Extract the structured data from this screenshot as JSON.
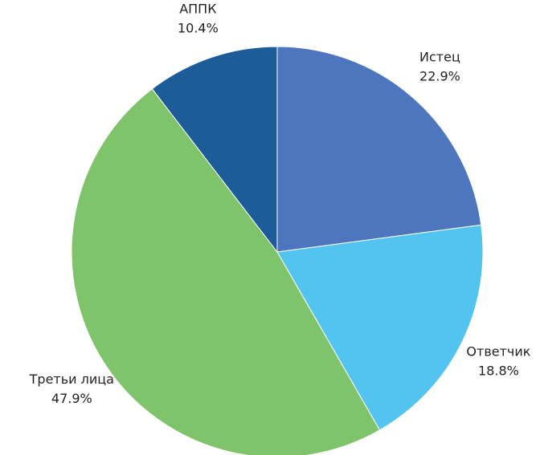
{
  "chart_data": {
    "type": "pie",
    "categories": [
      "Истец",
      "Ответчик",
      "Третьи лица",
      "АППК"
    ],
    "values": [
      22.9,
      18.8,
      47.9,
      10.4
    ],
    "value_labels": [
      "22.9%",
      "18.8%",
      "47.9%",
      "10.4%"
    ],
    "colors": [
      "#4e76be",
      "#53c3ef",
      "#7fc46a",
      "#1b5c99"
    ]
  }
}
